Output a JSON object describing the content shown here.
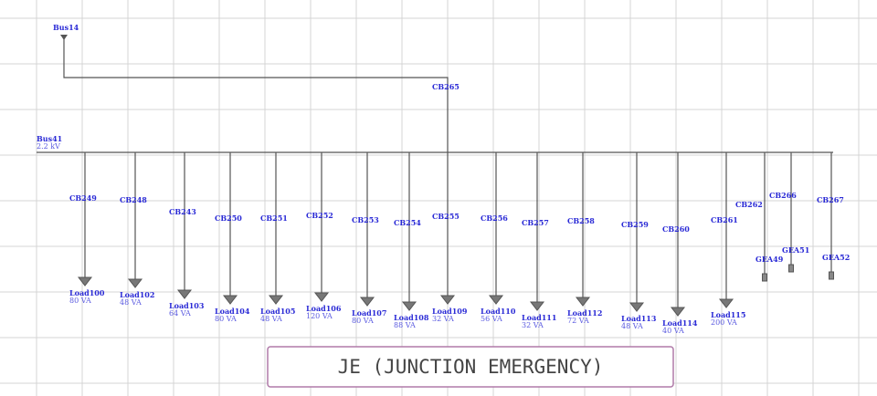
{
  "source_bus": {
    "label": "Bus14"
  },
  "tie_breaker": "CB265",
  "main_bus": {
    "label": "Bus41",
    "voltage": "2.2 kV"
  },
  "feeders": [
    {
      "breaker": "CB249",
      "load": "Load100",
      "rating": "80 VA"
    },
    {
      "breaker": "CB248",
      "load": "Load102",
      "rating": "48 VA"
    },
    {
      "breaker": "CB243",
      "load": "Load103",
      "rating": "64 VA"
    },
    {
      "breaker": "CB250",
      "load": "Load104",
      "rating": "80 VA"
    },
    {
      "breaker": "CB251",
      "load": "Load105",
      "rating": "48 VA"
    },
    {
      "breaker": "CB252",
      "load": "Load106",
      "rating": "120 VA"
    },
    {
      "breaker": "CB253",
      "load": "Load107",
      "rating": "80 VA"
    },
    {
      "breaker": "CB254",
      "load": "Load108",
      "rating": "88 VA"
    },
    {
      "breaker": "CB255",
      "load": "Load109",
      "rating": "32 VA"
    },
    {
      "breaker": "CB256",
      "load": "Load110",
      "rating": "56 VA"
    },
    {
      "breaker": "CB257",
      "load": "Load111",
      "rating": "32 VA"
    },
    {
      "breaker": "CB258",
      "load": "Load112",
      "rating": "72 VA"
    },
    {
      "breaker": "CB259",
      "load": "Load113",
      "rating": "48 VA"
    },
    {
      "breaker": "CB260",
      "load": "Load114",
      "rating": "40 VA"
    },
    {
      "breaker": "CB261",
      "load": "Load115",
      "rating": "200 VA"
    }
  ],
  "generators": [
    {
      "breaker": "CB262",
      "label": "GEA49"
    },
    {
      "breaker": "CB266",
      "label": "GEA51"
    },
    {
      "breaker": "CB267",
      "label": "GEA52"
    }
  ],
  "title": "JE (JUNCTION EMERGENCY)"
}
